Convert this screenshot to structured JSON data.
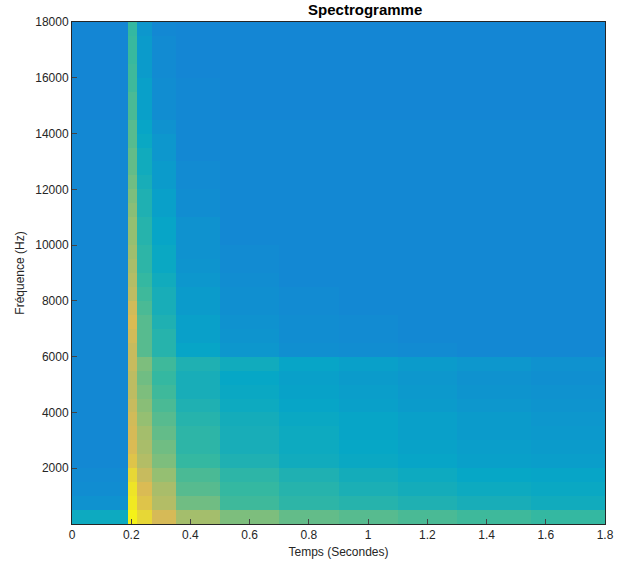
{
  "chart_data": {
    "type": "heatmap",
    "title": "Spectrogramme",
    "x_label": "Temps (Secondes)",
    "y_label": "Fréquence (Hz)",
    "xlim": [
      0,
      1.8
    ],
    "ylim": [
      0,
      18000
    ],
    "xticks": [
      0,
      0.2,
      0.4,
      0.6,
      0.8,
      1,
      1.2,
      1.4,
      1.6,
      1.8
    ],
    "yticks": [
      2000,
      4000,
      6000,
      8000,
      10000,
      12000,
      14000,
      16000,
      18000
    ],
    "zlim": [
      0,
      100
    ],
    "x": [
      0,
      0.19,
      0.22,
      0.27,
      0.35,
      0.5,
      0.7,
      0.9,
      1.1,
      1.3,
      1.55,
      1.8
    ],
    "y": [
      0,
      500,
      1000,
      1500,
      2000,
      2500,
      3000,
      3500,
      4000,
      4500,
      5000,
      5500,
      6000,
      6500,
      7000,
      7500,
      8000,
      8500,
      9000,
      9500,
      10000,
      10500,
      11000,
      11500,
      12000,
      12500,
      13000,
      13500,
      14000,
      14500,
      15000,
      15500,
      16000,
      16500,
      17000,
      17500,
      18000
    ],
    "z": [
      [
        45,
        98,
        92,
        85,
        75,
        68,
        64,
        62,
        60,
        58,
        56
      ],
      [
        34,
        96,
        88,
        78,
        66,
        58,
        54,
        52,
        50,
        48,
        46
      ],
      [
        32,
        95,
        86,
        76,
        62,
        56,
        52,
        49,
        47,
        45,
        44
      ],
      [
        31,
        92,
        82,
        72,
        60,
        54,
        50,
        47,
        45,
        43,
        42
      ],
      [
        30,
        88,
        78,
        68,
        56,
        50,
        46,
        44,
        42,
        40,
        39
      ],
      [
        30,
        86,
        76,
        66,
        54,
        48,
        45,
        43,
        41,
        39,
        38
      ],
      [
        30,
        85,
        75,
        64,
        54,
        48,
        45,
        42,
        40,
        38,
        37
      ],
      [
        30,
        84,
        72,
        62,
        52,
        47,
        44,
        42,
        40,
        38,
        36
      ],
      [
        30,
        82,
        70,
        60,
        50,
        45,
        42,
        40,
        38,
        36,
        35
      ],
      [
        30,
        80,
        68,
        58,
        48,
        44,
        41,
        39,
        37,
        35,
        34
      ],
      [
        30,
        80,
        66,
        56,
        48,
        43,
        40,
        38,
        36,
        34,
        33
      ],
      [
        30,
        82,
        68,
        58,
        50,
        46,
        42,
        40,
        38,
        36,
        34
      ],
      [
        30,
        82,
        62,
        52,
        42,
        36,
        33,
        32,
        31,
        30,
        30
      ],
      [
        30,
        84,
        62,
        52,
        40,
        35,
        32,
        31,
        30,
        30,
        30
      ],
      [
        30,
        86,
        62,
        50,
        40,
        34,
        32,
        31,
        30,
        30,
        30
      ],
      [
        30,
        84,
        60,
        48,
        38,
        33,
        31,
        30,
        30,
        30,
        30
      ],
      [
        30,
        80,
        58,
        48,
        38,
        33,
        31,
        30,
        30,
        30,
        30
      ],
      [
        30,
        78,
        56,
        46,
        36,
        32,
        30,
        30,
        30,
        30,
        30
      ],
      [
        30,
        76,
        54,
        44,
        35,
        31,
        30,
        30,
        30,
        30,
        30
      ],
      [
        30,
        74,
        54,
        44,
        34,
        31,
        30,
        30,
        30,
        30,
        30
      ],
      [
        30,
        72,
        52,
        42,
        34,
        30,
        30,
        30,
        30,
        30,
        30
      ],
      [
        30,
        72,
        52,
        42,
        34,
        30,
        30,
        30,
        30,
        30,
        30
      ],
      [
        30,
        70,
        50,
        40,
        32,
        30,
        30,
        30,
        30,
        30,
        30
      ],
      [
        30,
        68,
        50,
        40,
        32,
        30,
        30,
        30,
        30,
        30,
        30
      ],
      [
        30,
        66,
        48,
        38,
        31,
        30,
        30,
        30,
        30,
        30,
        30
      ],
      [
        30,
        64,
        46,
        38,
        31,
        30,
        30,
        30,
        30,
        30,
        30
      ],
      [
        30,
        64,
        46,
        36,
        30,
        30,
        30,
        30,
        30,
        30,
        30
      ],
      [
        30,
        62,
        44,
        36,
        30,
        30,
        30,
        30,
        30,
        30,
        30
      ],
      [
        30,
        62,
        42,
        34,
        30,
        30,
        30,
        30,
        30,
        30,
        30
      ],
      [
        29,
        60,
        40,
        32,
        30,
        29,
        29,
        29,
        29,
        29,
        29
      ],
      [
        29,
        60,
        40,
        32,
        30,
        29,
        29,
        29,
        29,
        29,
        29
      ],
      [
        29,
        58,
        40,
        32,
        30,
        29,
        29,
        29,
        29,
        29,
        29
      ],
      [
        29,
        58,
        38,
        31,
        29,
        29,
        29,
        29,
        29,
        29,
        29
      ],
      [
        29,
        57,
        38,
        31,
        29,
        29,
        29,
        29,
        29,
        29,
        29
      ],
      [
        29,
        57,
        38,
        31,
        29,
        29,
        29,
        29,
        29,
        29,
        29
      ],
      [
        29,
        56,
        36,
        30,
        29,
        29,
        29,
        29,
        29,
        29,
        29
      ]
    ]
  }
}
